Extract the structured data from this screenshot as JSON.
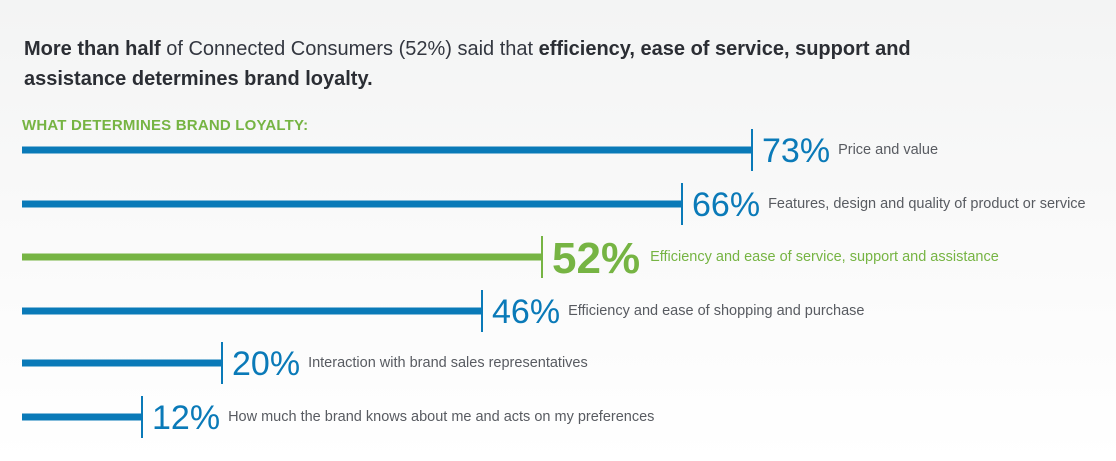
{
  "headline": {
    "bold_start": "More than half",
    "middle": " of Connected Consumers (52%) said that ",
    "bold_end": "efficiency, ease of service, support and assistance determines brand loyalty."
  },
  "colors": {
    "blue": "#0a7ab8",
    "green": "#76b443",
    "text": "#585b61"
  },
  "chart_data": {
    "type": "bar",
    "title": "WHAT DETERMINES BRAND LOYALTY:",
    "orientation": "horizontal",
    "categories": [
      "Price and value",
      "Features, design and quality of product or service",
      "Efficiency and ease of service, support and assistance",
      "Efficiency and ease of shopping and purchase",
      "Interaction with brand sales representatives",
      "How much the brand knows about me and acts on my preferences"
    ],
    "values": [
      73,
      66,
      52,
      46,
      20,
      12
    ],
    "value_labels": [
      "73%",
      "66%",
      "52%",
      "46%",
      "20%",
      "12%"
    ],
    "highlight_index": 2,
    "xlim": [
      0,
      100
    ],
    "grid": false,
    "legend": "none"
  }
}
